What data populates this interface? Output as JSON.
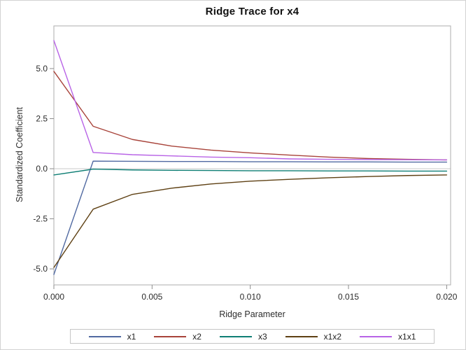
{
  "window": {
    "background": "#FFFFFF",
    "border_color": "#D2D2D2"
  },
  "chart_data": {
    "type": "line",
    "title": "Ridge Trace for x4",
    "xlabel": "Ridge Parameter",
    "ylabel": "Standardized Coefficient",
    "grid": false,
    "legend_position": "bottom",
    "xlim": [
      0,
      0.0202
    ],
    "ylim": [
      -5.8,
      7.13
    ],
    "reference_line_y": 0,
    "x_ticks": {
      "values": [
        0,
        0.005,
        0.01,
        0.015,
        0.02
      ],
      "labels": [
        "0.000",
        "0.005",
        "0.010",
        "0.015",
        "0.020"
      ]
    },
    "y_ticks": {
      "values": [
        5.0,
        2.5,
        0.0,
        -2.5,
        -5.0
      ],
      "labels": [
        "5.0",
        "2.5",
        "0.0",
        "-2.5",
        "-5.0"
      ]
    },
    "x": [
      0,
      0.002,
      0.004,
      0.006,
      0.008,
      0.01,
      0.012,
      0.014,
      0.016,
      0.018,
      0.02
    ],
    "series": [
      {
        "name": "x1",
        "color": "#5069A1",
        "values": [
          -5.28,
          0.38,
          0.37,
          0.36,
          0.36,
          0.35,
          0.35,
          0.34,
          0.34,
          0.33,
          0.33
        ]
      },
      {
        "name": "x2",
        "color": "#A8433A",
        "values": [
          4.86,
          2.12,
          1.46,
          1.13,
          0.93,
          0.79,
          0.68,
          0.58,
          0.51,
          0.47,
          0.44
        ]
      },
      {
        "name": "x3",
        "color": "#0E7E74",
        "values": [
          -0.31,
          -0.02,
          -0.06,
          -0.08,
          -0.09,
          -0.1,
          -0.1,
          -0.11,
          -0.11,
          -0.12,
          -0.12
        ]
      },
      {
        "name": "x1x2",
        "color": "#5E4013",
        "values": [
          -4.93,
          -2.02,
          -1.28,
          -0.97,
          -0.76,
          -0.62,
          -0.53,
          -0.45,
          -0.39,
          -0.34,
          -0.31
        ]
      },
      {
        "name": "x1x1",
        "color": "#B863E6",
        "values": [
          6.4,
          0.81,
          0.7,
          0.64,
          0.58,
          0.55,
          0.49,
          0.47,
          0.46,
          0.45,
          0.44
        ]
      }
    ],
    "frame_color": "#ADADAD",
    "tick_color": "#8C8C8C",
    "reference_line_color": "#C9C9C9"
  }
}
